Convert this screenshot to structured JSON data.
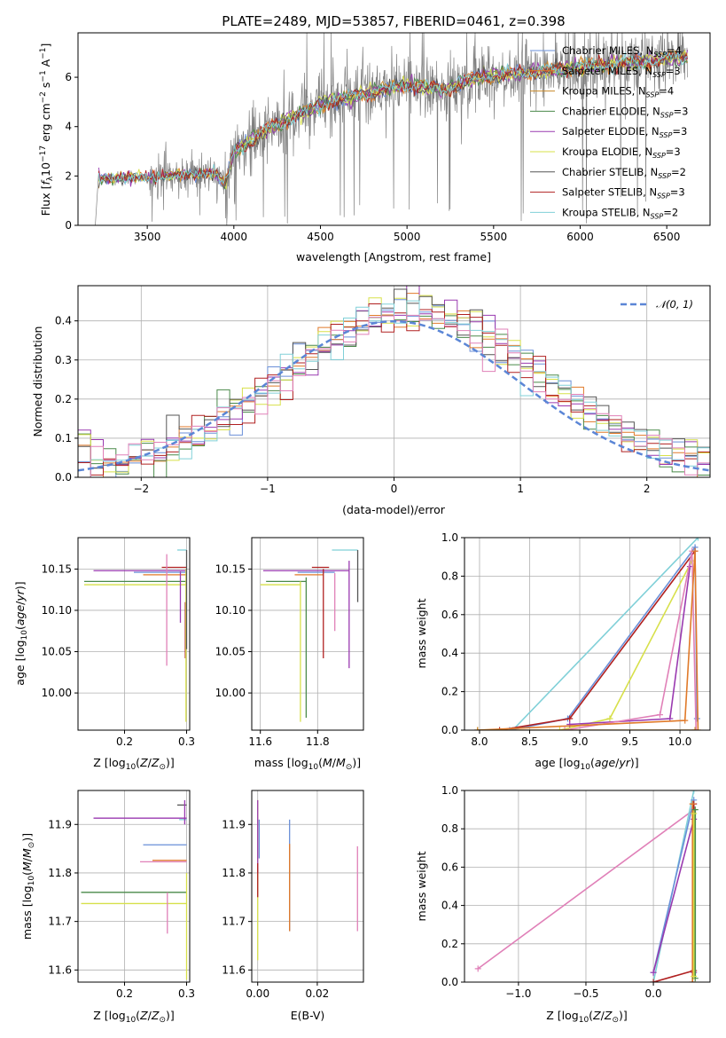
{
  "colors": {
    "chabrier_miles": "#6a8fd8",
    "salpeter_miles": "#e07a2a",
    "kroupa_miles": "#c98a2a",
    "chabrier_elodie": "#4a8a4a",
    "salpeter_elodie": "#9a3ab0",
    "kroupa_elodie": "#d7e04a",
    "chabrier_stelib": "#555555",
    "salpeter_stelib": "#b02020",
    "kroupa_stelib": "#80d0d8",
    "pink": "#e080b8",
    "data": "#808080",
    "normal": "#5b86d6"
  },
  "chart_data": [
    {
      "id": "spectrum",
      "type": "line",
      "title": "PLATE=2489, MJD=53857, FIBERID=0461, z=0.398",
      "xlabel": "wavelength [Angstrom, rest frame]",
      "ylabel": "Flux [f_λ 10^-17 erg cm^-2 s^-1 A^-1]",
      "xlim": [
        3100,
        6750
      ],
      "ylim": [
        0,
        7.8
      ],
      "xticks": [
        "3500",
        "4000",
        "4500",
        "5000",
        "5500",
        "6000",
        "6500"
      ],
      "yticks": [
        "0",
        "2",
        "4",
        "6"
      ],
      "grid": false,
      "legend_position": "top-right",
      "continuum_knots": [
        [
          3220,
          1.9
        ],
        [
          3500,
          1.95
        ],
        [
          3700,
          2.05
        ],
        [
          3900,
          2.1
        ],
        [
          3950,
          1.6
        ],
        [
          4000,
          3.0
        ],
        [
          4200,
          3.9
        ],
        [
          4500,
          4.9
        ],
        [
          4800,
          5.4
        ],
        [
          5000,
          5.7
        ],
        [
          5200,
          5.5
        ],
        [
          5400,
          6.0
        ],
        [
          5700,
          6.2
        ],
        [
          6000,
          6.4
        ],
        [
          6300,
          6.6
        ],
        [
          6600,
          6.8
        ]
      ],
      "legend": [
        {
          "label": "Chabrier MILES, N_SSP=4",
          "color_key": "chabrier_miles"
        },
        {
          "label": "Salpeter MILES, N_SSP=3",
          "color_key": "salpeter_miles"
        },
        {
          "label": "Kroupa MILES, N_SSP=4",
          "color_key": "kroupa_miles"
        },
        {
          "label": "Chabrier ELODIE, N_SSP=3",
          "color_key": "chabrier_elodie"
        },
        {
          "label": "Salpeter ELODIE, N_SSP=3",
          "color_key": "salpeter_elodie"
        },
        {
          "label": "Kroupa ELODIE, N_SSP=3",
          "color_key": "kroupa_elodie"
        },
        {
          "label": "Chabrier STELIB, N_SSP=2",
          "color_key": "chabrier_stelib"
        },
        {
          "label": "Salpeter STELIB, N_SSP=3",
          "color_key": "salpeter_stelib"
        },
        {
          "label": "Kroupa STELIB, N_SSP=2",
          "color_key": "kroupa_stelib"
        }
      ]
    },
    {
      "id": "residuals",
      "type": "bar",
      "xlabel": "(data-model)/error",
      "ylabel": "Normed distribution",
      "xlim": [
        -2.5,
        2.5
      ],
      "ylim": [
        0,
        0.49
      ],
      "xticks": [
        "−2",
        "−1",
        "0",
        "1",
        "2"
      ],
      "yticks": [
        "0.0",
        "0.1",
        "0.2",
        "0.3",
        "0.4"
      ],
      "grid": true,
      "legend_position": "top-right",
      "legend_label": "𝒩(0, 1)",
      "bins": 50
    },
    {
      "id": "age_vs_Z",
      "type": "scatter",
      "xlabel": "Z [log10(Z/Z⊙)]",
      "ylabel": "age [log10(age/yr)]",
      "xlim": [
        0.125,
        0.305
      ],
      "ylim": [
        9.955,
        10.188
      ],
      "xticks": [
        "0.2",
        "0.3"
      ],
      "yticks": [
        "10.00",
        "10.05",
        "10.10",
        "10.15"
      ],
      "grid": true,
      "points": [
        {
          "x": 0.3,
          "y": 10.148,
          "xerr": [
            0.15,
            0.0
          ],
          "color_key": "salpeter_elodie"
        },
        {
          "x": 0.3,
          "y": 10.135,
          "xerr": [
            0.165,
            0.0
          ],
          "color_key": "chabrier_elodie"
        },
        {
          "x": 0.3,
          "y": 10.131,
          "xerr": [
            0.165,
            0.0
          ],
          "color_key": "kroupa_elodie"
        },
        {
          "x": 0.3,
          "y": 10.146,
          "xerr": [
            0.085,
            0.0
          ],
          "color_key": "chabrier_miles"
        },
        {
          "x": 0.3,
          "y": 10.143,
          "xerr": [
            0.07,
            0.0
          ],
          "color_key": "salpeter_miles"
        },
        {
          "x": 0.3,
          "y": 10.152,
          "xerr": [
            0.04,
            0.0
          ],
          "color_key": "salpeter_stelib"
        },
        {
          "x": 0.285,
          "y": 10.173,
          "xerr": [
            0.0,
            0.015
          ],
          "color_key": "kroupa_stelib"
        },
        {
          "x": 0.268,
          "y": 10.15,
          "yerr": [
            0.117,
            0.018
          ],
          "color_key": "pink"
        },
        {
          "x": 0.29,
          "y": 10.125,
          "yerr": [
            0.04,
            0.022
          ],
          "color_key": "salpeter_elodie"
        },
        {
          "x": 0.298,
          "y": 10.11,
          "yerr": [
            0.068,
            0.0
          ],
          "color_key": "salpeter_stelib"
        },
        {
          "x": 0.299,
          "y": 10.15,
          "yerr": [
            0.185,
            0.0
          ],
          "color_key": "kroupa_elodie"
        },
        {
          "x": 0.3,
          "y": 10.173,
          "yerr": [
            0.12,
            0.0
          ],
          "color_key": "chabrier_stelib"
        }
      ]
    },
    {
      "id": "age_vs_mass",
      "type": "scatter",
      "xlabel": "mass [log10(M/M⊙)]",
      "ylabel": "",
      "xlim": [
        11.57,
        11.96
      ],
      "ylim": [
        9.955,
        10.188
      ],
      "xticks": [
        "11.6",
        "11.8"
      ],
      "yticks": [
        "10.00",
        "10.05",
        "10.10",
        "10.15"
      ],
      "grid": true,
      "points": [
        {
          "x": 11.74,
          "y": 10.131,
          "xerr": [
            0.14,
            0.0
          ],
          "color_key": "kroupa_elodie"
        },
        {
          "x": 11.76,
          "y": 10.135,
          "xerr": [
            0.14,
            0.0
          ],
          "color_key": "chabrier_elodie"
        },
        {
          "x": 11.91,
          "y": 10.148,
          "xerr": [
            0.3,
            0.0
          ],
          "color_key": "salpeter_elodie"
        },
        {
          "x": 11.86,
          "y": 10.146,
          "xerr": [
            0.13,
            0.0
          ],
          "color_key": "chabrier_miles"
        },
        {
          "x": 11.82,
          "y": 10.143,
          "xerr": [
            0.1,
            0.0
          ],
          "color_key": "salpeter_miles"
        },
        {
          "x": 11.84,
          "y": 10.152,
          "xerr": [
            0.06,
            0.0
          ],
          "color_key": "salpeter_stelib"
        },
        {
          "x": 11.94,
          "y": 10.173,
          "xerr": [
            0.09,
            0.0
          ],
          "color_key": "kroupa_stelib"
        },
        {
          "x": 11.74,
          "y": 10.135,
          "yerr": [
            0.17,
            0.0
          ],
          "color_key": "kroupa_elodie"
        },
        {
          "x": 11.76,
          "y": 10.14,
          "yerr": [
            0.17,
            0.0
          ],
          "color_key": "chabrier_elodie"
        },
        {
          "x": 11.82,
          "y": 10.15,
          "yerr": [
            0.108,
            0.0
          ],
          "color_key": "salpeter_stelib"
        },
        {
          "x": 11.86,
          "y": 10.145,
          "yerr": [
            0.07,
            0.0
          ],
          "color_key": "pink"
        },
        {
          "x": 11.91,
          "y": 10.16,
          "yerr": [
            0.13,
            0.0
          ],
          "color_key": "salpeter_elodie"
        },
        {
          "x": 11.94,
          "y": 10.173,
          "yerr": [
            0.063,
            0.0
          ],
          "color_key": "chabrier_stelib"
        }
      ]
    },
    {
      "id": "massweight_vs_age",
      "type": "line",
      "xlabel": "age [log10(age/yr)]",
      "ylabel": "mass weight",
      "xlim": [
        7.85,
        10.3
      ],
      "ylim": [
        0,
        1.0
      ],
      "xticks": [
        "8.0",
        "8.5",
        "9.0",
        "9.5",
        "10.0"
      ],
      "yticks": [
        "0.0",
        "0.2",
        "0.4",
        "0.6",
        "0.8",
        "1.0"
      ],
      "grid": true,
      "series": [
        {
          "color_key": "kroupa_stelib",
          "x": [
            8.33,
            10.18
          ],
          "y": [
            0.0,
            1.0
          ]
        },
        {
          "color_key": "chabrier_miles",
          "x": [
            8.3,
            8.88,
            10.15,
            10.17
          ],
          "y": [
            0.0,
            0.06,
            0.95,
            0.06
          ]
        },
        {
          "color_key": "salpeter_stelib",
          "x": [
            8.2,
            8.9,
            10.15
          ],
          "y": [
            0.0,
            0.06,
            0.93
          ]
        },
        {
          "color_key": "kroupa_elodie",
          "x": [
            8.8,
            9.3,
            10.12
          ],
          "y": [
            0.0,
            0.06,
            0.88
          ]
        },
        {
          "color_key": "salpeter_elodie",
          "x": [
            8.9,
            9.9,
            10.1
          ],
          "y": [
            0.03,
            0.06,
            0.85
          ]
        },
        {
          "color_key": "pink",
          "x": [
            8.85,
            9.8,
            10.12,
            10.16
          ],
          "y": [
            0.0,
            0.08,
            0.93,
            0.0
          ]
        },
        {
          "color_key": "salpeter_miles",
          "x": [
            7.98,
            10.05,
            10.15,
            10.18
          ],
          "y": [
            0.0,
            0.05,
            0.93,
            0.0
          ]
        },
        {
          "color_key": "kroupa_miles",
          "x": [
            7.98,
            10.15
          ],
          "y": [
            0.0,
            0.0
          ]
        }
      ]
    },
    {
      "id": "mass_vs_Z",
      "type": "scatter",
      "xlabel": "Z [log10(Z/Z⊙)]",
      "ylabel": "mass [log10(M/M⊙)]",
      "xlim": [
        0.125,
        0.305
      ],
      "ylim": [
        11.575,
        11.97
      ],
      "xticks": [
        "0.2",
        "0.3"
      ],
      "yticks": [
        "11.6",
        "11.7",
        "11.8",
        "11.9"
      ],
      "grid": true,
      "points": [
        {
          "x": 0.3,
          "y": 11.913,
          "xerr": [
            0.15,
            0.0
          ],
          "color_key": "salpeter_elodie"
        },
        {
          "x": 0.3,
          "y": 11.76,
          "xerr": [
            0.17,
            0.0
          ],
          "color_key": "chabrier_elodie"
        },
        {
          "x": 0.3,
          "y": 11.737,
          "xerr": [
            0.17,
            0.0
          ],
          "color_key": "kroupa_elodie"
        },
        {
          "x": 0.3,
          "y": 11.858,
          "xerr": [
            0.07,
            0.0
          ],
          "color_key": "chabrier_miles"
        },
        {
          "x": 0.3,
          "y": 11.826,
          "xerr": [
            0.055,
            0.0
          ],
          "color_key": "salpeter_miles"
        },
        {
          "x": 0.3,
          "y": 11.823,
          "xerr": [
            0.075,
            0.0
          ],
          "color_key": "pink"
        },
        {
          "x": 0.3,
          "y": 11.94,
          "xerr": [
            0.015,
            0.0
          ],
          "color_key": "chabrier_stelib"
        },
        {
          "x": 0.3,
          "y": 11.91,
          "xerr": [
            0.012,
            0.0
          ],
          "color_key": "kroupa_stelib"
        },
        {
          "x": 0.269,
          "y": 11.76,
          "yerr": [
            0.085,
            0.0
          ],
          "color_key": "pink"
        },
        {
          "x": 0.297,
          "y": 11.9,
          "yerr": [
            0.0,
            0.05
          ],
          "color_key": "salpeter_elodie"
        },
        {
          "x": 0.299,
          "y": 11.83,
          "yerr": [
            0.0,
            0.0
          ],
          "color_key": "salpeter_stelib"
        },
        {
          "x": 0.3,
          "y": 11.8,
          "yerr": [
            0.22,
            0.0
          ],
          "color_key": "kroupa_elodie"
        }
      ]
    },
    {
      "id": "mass_vs_EBV",
      "type": "scatter",
      "xlabel": "E(B-V)",
      "ylabel": "",
      "xlim": [
        -0.002,
        0.0355
      ],
      "ylim": [
        11.575,
        11.97
      ],
      "xticks": [
        "0.00",
        "0.02"
      ],
      "yticks": [
        "11.6",
        "11.7",
        "11.8",
        "11.9"
      ],
      "grid": true,
      "points": [
        {
          "x": 0.0,
          "y": 11.84,
          "yerr": [
            0.22,
            0.11
          ],
          "color_key": "kroupa_elodie"
        },
        {
          "x": 0.0,
          "y": 11.9,
          "yerr": [
            0.1,
            0.05
          ],
          "color_key": "salpeter_elodie"
        },
        {
          "x": 0.0,
          "y": 11.8,
          "yerr": [
            0.05,
            0.02
          ],
          "color_key": "salpeter_stelib"
        },
        {
          "x": 0.0005,
          "y": 11.88,
          "yerr": [
            0.05,
            0.03
          ],
          "color_key": "chabrier_miles"
        },
        {
          "x": 0.0107,
          "y": 11.85,
          "yerr": [
            0.17,
            0.06
          ],
          "color_key": "chabrier_miles"
        },
        {
          "x": 0.0107,
          "y": 11.8,
          "yerr": [
            0.12,
            0.06
          ],
          "color_key": "salpeter_miles"
        },
        {
          "x": 0.0335,
          "y": 11.78,
          "yerr": [
            0.1,
            0.075
          ],
          "color_key": "pink"
        }
      ]
    },
    {
      "id": "massweight_vs_Z",
      "type": "line",
      "xlabel": "Z [log10(Z/Z⊙)]",
      "ylabel": "mass weight",
      "xlim": [
        -1.4,
        0.42
      ],
      "ylim": [
        0,
        1.0
      ],
      "xticks": [
        "−1.0",
        "−0.5",
        "0.0"
      ],
      "yticks": [
        "0.0",
        "0.2",
        "0.4",
        "0.6",
        "0.8",
        "1.0"
      ],
      "grid": true,
      "series": [
        {
          "color_key": "pink",
          "x": [
            -1.3,
            0.3
          ],
          "y": [
            0.07,
            0.9
          ]
        },
        {
          "color_key": "kroupa_stelib",
          "x": [
            0.0,
            0.3
          ],
          "y": [
            0.0,
            1.0
          ]
        },
        {
          "color_key": "chabrier_miles",
          "x": [
            0.0,
            0.3
          ],
          "y": [
            0.05,
            0.95
          ]
        },
        {
          "color_key": "salpeter_elodie",
          "x": [
            0.0,
            0.3,
            0.3
          ],
          "y": [
            0.05,
            0.85,
            0.05
          ]
        },
        {
          "color_key": "salpeter_stelib",
          "x": [
            0.0,
            0.3,
            0.3
          ],
          "y": [
            0.0,
            0.06,
            0.93
          ]
        },
        {
          "color_key": "salpeter_miles",
          "x": [
            0.29,
            0.29
          ],
          "y": [
            0.0,
            0.93
          ]
        },
        {
          "color_key": "chabrier_elodie",
          "x": [
            0.31,
            0.31
          ],
          "y": [
            0.02,
            0.9
          ]
        },
        {
          "color_key": "kroupa_elodie",
          "x": [
            0.3,
            0.3
          ],
          "y": [
            0.03,
            0.88
          ]
        }
      ]
    }
  ]
}
